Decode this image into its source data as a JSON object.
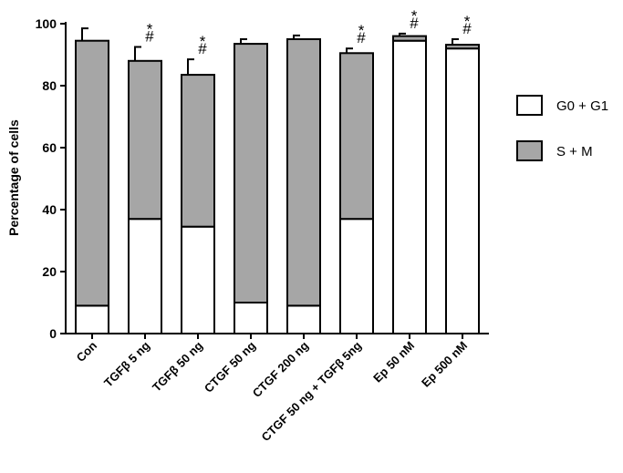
{
  "chart_data": {
    "type": "bar",
    "stacked": true,
    "ylabel": "Percentage of cells",
    "ylim": [
      0,
      100
    ],
    "yticks": [
      "0",
      "20",
      "40",
      "60",
      "80",
      "100"
    ],
    "categories": [
      "Con",
      "TGFβ 5 ng",
      "TGFβ 50 ng",
      "CTGF 50 ng",
      "CTGF 200 ng",
      "CTGF 50 ng + TGFβ 5ng",
      "Ep 50 nM",
      "Ep 500 nM"
    ],
    "series": [
      {
        "name": "G0 + G1",
        "color": "#ffffff",
        "values": [
          9,
          37,
          34.5,
          10,
          9,
          37,
          94.5,
          92
        ],
        "errors": [
          0.8,
          5,
          2.5,
          2,
          1.5,
          3,
          0.8,
          1.2
        ]
      },
      {
        "name": "S + M",
        "color": "#a6a6a6",
        "values": [
          85.5,
          51,
          49,
          83.5,
          86,
          53.5,
          1.5,
          1.2
        ],
        "errors": [
          4,
          4.5,
          5,
          1.5,
          1.2,
          1.5,
          0.8,
          1.8
        ]
      }
    ],
    "annotations": [
      {
        "category": "TGFβ 5 ng",
        "lines": [
          "*",
          "#"
        ]
      },
      {
        "category": "TGFβ 50 ng",
        "lines": [
          "*",
          "#"
        ]
      },
      {
        "category": "CTGF 50 ng + TGFβ 5ng",
        "lines": [
          "*",
          "#"
        ]
      },
      {
        "category": "Ep 50 nM",
        "lines": [
          "*",
          "#"
        ]
      },
      {
        "category": "Ep 500 nM",
        "lines": [
          "*",
          "#"
        ]
      }
    ],
    "legend": {
      "position": "right"
    }
  }
}
